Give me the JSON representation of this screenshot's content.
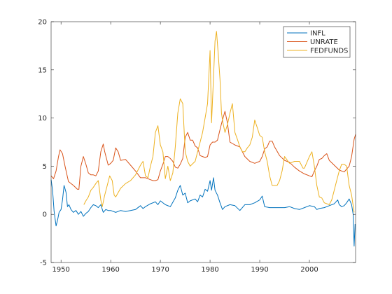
{
  "chart_data": {
    "type": "line",
    "title": "",
    "xlabel": "",
    "ylabel": "",
    "xlim": [
      1948,
      2009.3
    ],
    "ylim": [
      -5,
      20
    ],
    "xticks": [
      1950,
      1960,
      1970,
      1980,
      1990,
      2000
    ],
    "yticks": [
      -5,
      0,
      5,
      10,
      15,
      20
    ],
    "grid": false,
    "legend_position": "top-right",
    "series": [
      {
        "name": "INFL",
        "color": "#0072BD",
        "x": [
          1948.0,
          1948.3,
          1948.6,
          1949.0,
          1949.3,
          1949.6,
          1950.0,
          1950.3,
          1950.6,
          1951.0,
          1951.3,
          1951.6,
          1952.0,
          1952.5,
          1953.0,
          1953.5,
          1954.0,
          1954.5,
          1955.0,
          1955.5,
          1956.0,
          1956.5,
          1957.0,
          1957.5,
          1958.0,
          1958.5,
          1959.0,
          1959.5,
          1960.0,
          1961.0,
          1962.0,
          1963.0,
          1964.0,
          1965.0,
          1966.0,
          1966.5,
          1967.0,
          1968.0,
          1969.0,
          1969.5,
          1970.0,
          1971.0,
          1972.0,
          1973.0,
          1973.5,
          1974.0,
          1974.5,
          1975.0,
          1975.5,
          1976.0,
          1977.0,
          1977.5,
          1978.0,
          1978.5,
          1979.0,
          1979.5,
          1980.0,
          1980.3,
          1980.7,
          1981.0,
          1981.5,
          1982.0,
          1982.5,
          1983.0,
          1984.0,
          1985.0,
          1986.0,
          1987.0,
          1988.0,
          1989.0,
          1990.0,
          1990.5,
          1991.0,
          1992.0,
          1993.0,
          1994.0,
          1995.0,
          1996.0,
          1997.0,
          1998.0,
          1999.0,
          2000.0,
          2001.0,
          2001.5,
          2002.0,
          2003.0,
          2004.0,
          2005.0,
          2005.7,
          2006.0,
          2006.5,
          2007.0,
          2007.5,
          2008.0,
          2008.5,
          2008.8,
          2009.0,
          2009.2
        ],
        "values": [
          3.6,
          2.5,
          0.3,
          -1.2,
          -0.6,
          0.2,
          0.5,
          1.5,
          3.0,
          2.3,
          0.8,
          1.0,
          0.5,
          0.2,
          0.4,
          0.0,
          0.3,
          -0.2,
          0.1,
          0.3,
          0.7,
          1.0,
          0.9,
          0.7,
          1.0,
          0.2,
          0.5,
          0.4,
          0.4,
          0.2,
          0.4,
          0.3,
          0.4,
          0.5,
          0.9,
          0.6,
          0.8,
          1.1,
          1.3,
          1.0,
          1.4,
          1.0,
          0.8,
          1.7,
          2.5,
          3.0,
          2.0,
          2.2,
          1.2,
          1.4,
          1.6,
          1.3,
          2.0,
          1.8,
          2.6,
          2.4,
          3.5,
          2.5,
          3.8,
          2.5,
          2.0,
          1.2,
          0.5,
          0.8,
          1.0,
          0.9,
          0.4,
          1.0,
          1.0,
          1.2,
          1.5,
          1.9,
          0.8,
          0.7,
          0.7,
          0.7,
          0.7,
          0.8,
          0.6,
          0.5,
          0.7,
          0.9,
          0.8,
          0.5,
          0.6,
          0.7,
          0.9,
          1.1,
          1.5,
          1.0,
          0.8,
          0.9,
          1.2,
          1.6,
          1.0,
          0.0,
          -3.3,
          -1.0
        ]
      },
      {
        "name": "UNRATE",
        "color": "#D95319",
        "x": [
          1948.0,
          1948.5,
          1949.0,
          1949.5,
          1949.8,
          1950.3,
          1950.8,
          1951.5,
          1952.5,
          1953.3,
          1953.6,
          1954.0,
          1954.5,
          1955.0,
          1955.5,
          1956.0,
          1956.5,
          1957.0,
          1957.5,
          1958.0,
          1958.5,
          1958.8,
          1959.5,
          1960.0,
          1960.5,
          1961.0,
          1961.5,
          1962.0,
          1963.0,
          1964.0,
          1965.0,
          1966.0,
          1966.5,
          1967.0,
          1968.0,
          1968.5,
          1969.0,
          1969.5,
          1970.0,
          1970.5,
          1971.0,
          1971.5,
          1972.0,
          1972.5,
          1973.0,
          1973.5,
          1974.0,
          1974.5,
          1975.0,
          1975.5,
          1976.0,
          1976.5,
          1977.0,
          1977.5,
          1978.0,
          1978.5,
          1979.0,
          1979.5,
          1980.0,
          1980.5,
          1981.0,
          1981.5,
          1982.0,
          1982.5,
          1983.0,
          1983.5,
          1984.0,
          1985.0,
          1986.0,
          1987.0,
          1988.0,
          1989.0,
          1990.0,
          1990.5,
          1991.0,
          1991.5,
          1992.0,
          1992.5,
          1993.0,
          1994.0,
          1995.0,
          1996.0,
          1997.0,
          1998.0,
          1999.0,
          2000.0,
          2000.5,
          2001.0,
          2001.5,
          2002.0,
          2002.5,
          2003.0,
          2003.5,
          2004.0,
          2005.0,
          2006.0,
          2006.5,
          2007.0,
          2007.5,
          2008.0,
          2008.5,
          2009.0,
          2009.3
        ],
        "values": [
          4.0,
          3.7,
          4.5,
          6.0,
          6.7,
          6.3,
          5.0,
          3.4,
          3.0,
          2.6,
          2.6,
          5.0,
          6.0,
          5.2,
          4.3,
          4.1,
          4.1,
          4.0,
          4.5,
          6.5,
          7.3,
          6.5,
          5.1,
          5.3,
          5.6,
          6.9,
          6.5,
          5.6,
          5.7,
          5.1,
          4.5,
          3.8,
          3.8,
          3.8,
          3.6,
          3.5,
          3.5,
          3.6,
          4.5,
          5.2,
          6.0,
          6.0,
          5.8,
          5.5,
          4.9,
          4.8,
          5.2,
          5.8,
          8.0,
          8.5,
          7.7,
          7.7,
          7.1,
          6.9,
          6.1,
          6.0,
          5.9,
          6.0,
          7.2,
          7.5,
          7.5,
          7.7,
          8.8,
          9.8,
          10.7,
          9.5,
          7.5,
          7.2,
          7.0,
          6.0,
          5.5,
          5.3,
          5.5,
          6.0,
          6.8,
          7.0,
          7.6,
          7.6,
          7.0,
          6.1,
          5.6,
          5.4,
          4.9,
          4.5,
          4.2,
          4.0,
          3.9,
          4.5,
          5.0,
          5.7,
          5.8,
          6.1,
          6.3,
          5.6,
          5.1,
          4.6,
          4.5,
          4.4,
          4.7,
          5.0,
          6.0,
          7.8,
          8.3
        ]
      },
      {
        "name": "FEDFUNDS",
        "color": "#EDB120",
        "x": [
          1954.6,
          1955.0,
          1955.5,
          1956.0,
          1956.5,
          1957.0,
          1957.5,
          1958.0,
          1958.3,
          1958.8,
          1959.3,
          1959.8,
          1960.3,
          1960.7,
          1961.0,
          1962.0,
          1963.0,
          1964.0,
          1965.0,
          1966.0,
          1966.5,
          1967.0,
          1967.5,
          1968.0,
          1968.5,
          1969.0,
          1969.5,
          1970.0,
          1970.5,
          1971.0,
          1971.5,
          1972.0,
          1972.5,
          1973.0,
          1973.5,
          1974.0,
          1974.5,
          1975.0,
          1975.5,
          1976.0,
          1977.0,
          1977.5,
          1978.0,
          1978.5,
          1979.0,
          1979.5,
          1980.0,
          1980.3,
          1980.6,
          1981.0,
          1981.3,
          1981.6,
          1982.0,
          1982.3,
          1982.6,
          1983.0,
          1983.5,
          1984.0,
          1984.5,
          1985.0,
          1985.5,
          1986.0,
          1986.5,
          1987.0,
          1987.5,
          1988.0,
          1988.5,
          1989.0,
          1989.5,
          1990.0,
          1990.5,
          1991.0,
          1991.5,
          1992.0,
          1992.5,
          1993.0,
          1993.5,
          1994.0,
          1994.5,
          1995.0,
          1996.0,
          1997.0,
          1998.0,
          1998.7,
          1999.0,
          2000.0,
          2000.5,
          2001.0,
          2001.5,
          2002.0,
          2002.5,
          2003.0,
          2004.0,
          2004.5,
          2005.0,
          2005.5,
          2006.0,
          2006.5,
          2007.0,
          2007.5,
          2008.0,
          2008.5,
          2009.0
        ],
        "values": [
          1.0,
          1.4,
          1.8,
          2.5,
          2.8,
          3.2,
          3.5,
          1.5,
          0.8,
          2.0,
          3.0,
          4.0,
          3.5,
          2.0,
          1.8,
          2.7,
          3.2,
          3.5,
          4.1,
          5.1,
          5.5,
          4.0,
          3.8,
          5.0,
          6.0,
          8.5,
          9.2,
          7.2,
          6.5,
          3.7,
          5.0,
          3.5,
          4.3,
          7.0,
          10.5,
          12.0,
          11.5,
          6.5,
          5.5,
          5.0,
          5.5,
          6.5,
          7.5,
          8.5,
          10.0,
          11.5,
          17.0,
          9.5,
          13.0,
          18.0,
          19.0,
          17.0,
          14.0,
          10.5,
          9.5,
          8.5,
          9.3,
          10.5,
          11.5,
          8.5,
          7.8,
          7.0,
          6.5,
          6.5,
          6.9,
          7.2,
          8.0,
          9.8,
          9.0,
          8.2,
          8.0,
          6.5,
          5.5,
          4.0,
          3.0,
          3.0,
          3.0,
          3.5,
          4.5,
          6.0,
          5.3,
          5.5,
          5.5,
          4.8,
          4.8,
          6.0,
          6.5,
          5.0,
          3.0,
          1.8,
          1.7,
          1.2,
          1.0,
          1.5,
          2.5,
          3.5,
          4.5,
          5.2,
          5.2,
          5.0,
          3.0,
          2.0,
          0.2
        ]
      }
    ]
  }
}
